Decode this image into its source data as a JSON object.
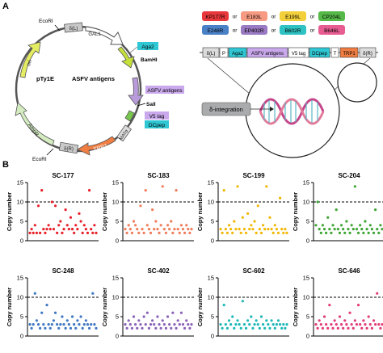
{
  "panel_a": {
    "label": "A",
    "plasmid": {
      "name": "pTy1E",
      "insert": "ASFV antigens",
      "sites": {
        "ecori_top": "EcoRI",
        "bamhi": "BamHI",
        "sali": "SalI",
        "ecori_bottom": "EcoRI"
      },
      "features": {
        "dL": "δ(L)",
        "gal1": "GAL1",
        "aga2": "Aga2",
        "asfv": "ASFV antigens",
        "v5": "V5 tag",
        "dcpep": "DCpep",
        "mata": "MATα",
        "trp1": "TRP1",
        "dR": "δ(R)",
        "ampr": "AmpR",
        "ori": "ori"
      }
    },
    "antigens": [
      {
        "label": "KP177R",
        "color": "#e8383b"
      },
      {
        "label": "E183L",
        "color": "#f79a82"
      },
      {
        "label": "E199L",
        "color": "#f3cf3a"
      },
      {
        "label": "CP204L",
        "color": "#55b848"
      },
      {
        "label": "E248R",
        "color": "#4a80c6"
      },
      {
        "label": "EP402R",
        "color": "#9a7ac2"
      },
      {
        "label": "B602R",
        "color": "#2fc2c2"
      },
      {
        "label": "B646L",
        "color": "#e85d91"
      }
    ],
    "or_word": "or",
    "cassette": [
      "δ(L)",
      "P",
      "Aga2",
      "ASFV antigens",
      "V5 tag",
      "DCpep",
      "T",
      "TRP1",
      "δ(R)"
    ],
    "integration_label": "δ-integration"
  },
  "panel_b": {
    "label": "B",
    "ylabel": "Copy number",
    "threshold": 10
  },
  "chart_data": [
    {
      "type": "scatter",
      "title": "SC-177",
      "color": "#e8202a",
      "ylim": [
        0,
        15
      ],
      "yticks": [
        0,
        5,
        10,
        15
      ],
      "ylabel": "Copy number",
      "values": [
        2,
        3,
        2,
        4,
        2,
        9,
        2,
        13,
        3,
        2,
        3,
        4,
        3,
        10,
        3,
        9,
        2,
        4,
        5,
        2,
        3,
        8,
        4,
        3,
        6,
        3,
        2,
        4,
        3,
        7,
        5,
        2,
        4,
        3,
        2,
        13,
        3,
        2,
        4,
        2
      ]
    },
    {
      "type": "scatter",
      "title": "SC-183",
      "color": "#f07c5a",
      "ylim": [
        0,
        15
      ],
      "yticks": [
        0,
        5,
        10,
        15
      ],
      "ylabel": "Copy number",
      "values": [
        3,
        2,
        4,
        3,
        2,
        5,
        4,
        3,
        2,
        9,
        3,
        2,
        13,
        4,
        3,
        2,
        8,
        3,
        5,
        3,
        2,
        4,
        14,
        3,
        2,
        4,
        3,
        5,
        2,
        3,
        13,
        3,
        2,
        4,
        3,
        2,
        4,
        3,
        2,
        3
      ]
    },
    {
      "type": "scatter",
      "title": "SC-199",
      "color": "#f2b705",
      "ylim": [
        0,
        15
      ],
      "yticks": [
        0,
        5,
        10,
        15
      ],
      "ylabel": "Copy number",
      "values": [
        3,
        2,
        13,
        3,
        2,
        4,
        3,
        2,
        5,
        3,
        14,
        3,
        2,
        6,
        3,
        2,
        7,
        3,
        4,
        3,
        5,
        2,
        9,
        3,
        2,
        4,
        3,
        14,
        3,
        6,
        3,
        2,
        4,
        3,
        2,
        11,
        3,
        2,
        3,
        2
      ]
    },
    {
      "type": "scatter",
      "title": "SC-204",
      "color": "#3fa535",
      "ylim": [
        0,
        15
      ],
      "yticks": [
        0,
        5,
        10,
        15
      ],
      "ylabel": "Copy number",
      "values": [
        4,
        10,
        3,
        2,
        4,
        3,
        2,
        6,
        3,
        2,
        4,
        3,
        8,
        3,
        2,
        4,
        3,
        2,
        5,
        3,
        2,
        4,
        3,
        14,
        3,
        2,
        4,
        3,
        2,
        5,
        3,
        2,
        4,
        3,
        2,
        8,
        3,
        2,
        4,
        3
      ]
    },
    {
      "type": "scatter",
      "title": "SC-248",
      "color": "#3f78c2",
      "ylim": [
        0,
        15
      ],
      "yticks": [
        0,
        5,
        10,
        15
      ],
      "ylabel": "Copy number",
      "values": [
        3,
        2,
        3,
        11,
        4,
        3,
        2,
        6,
        3,
        2,
        8,
        3,
        2,
        3,
        4,
        6,
        3,
        2,
        3,
        5,
        3,
        2,
        4,
        3,
        2,
        5,
        3,
        2,
        4,
        3,
        5,
        2,
        3,
        4,
        3,
        2,
        3,
        11,
        3,
        2
      ]
    },
    {
      "type": "scatter",
      "title": "SC-402",
      "color": "#8a63b8",
      "ylim": [
        0,
        15
      ],
      "yticks": [
        0,
        5,
        10,
        15
      ],
      "ylabel": "Copy number",
      "values": [
        3,
        2,
        4,
        3,
        2,
        5,
        3,
        2,
        4,
        3,
        2,
        5,
        3,
        6,
        2,
        3,
        4,
        3,
        2,
        5,
        3,
        2,
        4,
        3,
        2,
        5,
        3,
        2,
        6,
        3,
        2,
        4,
        3,
        6,
        3,
        2,
        4,
        3,
        2,
        3
      ]
    },
    {
      "type": "scatter",
      "title": "SC-602",
      "color": "#1fb8b8",
      "ylim": [
        0,
        15
      ],
      "yticks": [
        0,
        5,
        10,
        15
      ],
      "ylabel": "Copy number",
      "values": [
        3,
        2,
        8,
        3,
        2,
        4,
        3,
        5,
        2,
        3,
        4,
        3,
        2,
        9,
        3,
        2,
        4,
        3,
        5,
        2,
        3,
        4,
        3,
        2,
        5,
        3,
        2,
        4,
        3,
        2,
        4,
        3,
        2,
        3,
        4,
        3,
        2,
        3,
        2,
        3
      ]
    },
    {
      "type": "scatter",
      "title": "SC-646",
      "color": "#e23d78",
      "ylim": [
        0,
        15
      ],
      "yticks": [
        0,
        5,
        10,
        15
      ],
      "ylabel": "Copy number",
      "values": [
        3,
        2,
        4,
        3,
        2,
        5,
        3,
        2,
        8,
        3,
        2,
        4,
        3,
        2,
        5,
        3,
        2,
        4,
        3,
        2,
        6,
        3,
        2,
        4,
        3,
        8,
        3,
        2,
        4,
        3,
        2,
        5,
        3,
        2,
        4,
        3,
        11,
        3,
        2,
        3
      ]
    }
  ]
}
